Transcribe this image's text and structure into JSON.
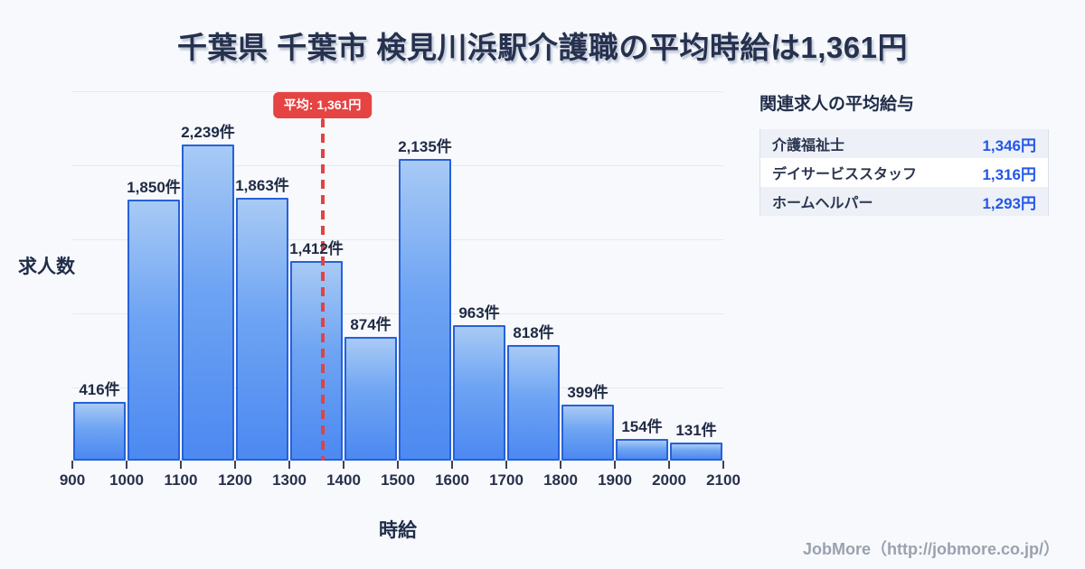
{
  "title": "千葉県 千葉市 検見川浜駅介護職の平均時給は1,361円",
  "chart_data": {
    "type": "bar",
    "title": "千葉県 千葉市 検見川浜駅介護職の平均時給は1,361円",
    "xlabel": "時給",
    "ylabel": "求人数",
    "bin_edges": [
      900,
      1000,
      1100,
      1200,
      1300,
      1400,
      1500,
      1600,
      1700,
      1800,
      1900,
      2000,
      2100
    ],
    "values": [
      416,
      1850,
      2239,
      1863,
      1412,
      874,
      2135,
      963,
      818,
      399,
      154,
      131
    ],
    "bar_labels": [
      "416件",
      "1,850件",
      "2,239件",
      "1,863件",
      "1,412件",
      "874件",
      "2,135件",
      "963件",
      "818件",
      "399件",
      "154件",
      "131件"
    ],
    "ylim": [
      0,
      2618
    ],
    "grid": true,
    "legend_position": "none",
    "average_line": {
      "value": 1361,
      "label": "平均: 1,361円"
    }
  },
  "side_panel": {
    "header": "関連求人の平均給与",
    "rows": [
      {
        "label": "介護福祉士",
        "value": "1,346円"
      },
      {
        "label": "デイサービススタッフ",
        "value": "1,316円"
      },
      {
        "label": "ホームヘルパー",
        "value": "1,293円"
      }
    ]
  },
  "footer": {
    "credit": "JobMore（http://jobmore.co.jp/）"
  },
  "colors": {
    "background": "#f7f9fc",
    "title_text": "#26314e",
    "bar_fill_top": "#a8caf5",
    "bar_fill_bottom": "#4c89f1",
    "bar_border": "#2661d8",
    "average_red": "#e64343",
    "value_blue": "#2457e8",
    "gridline": "#e4e9f1"
  }
}
